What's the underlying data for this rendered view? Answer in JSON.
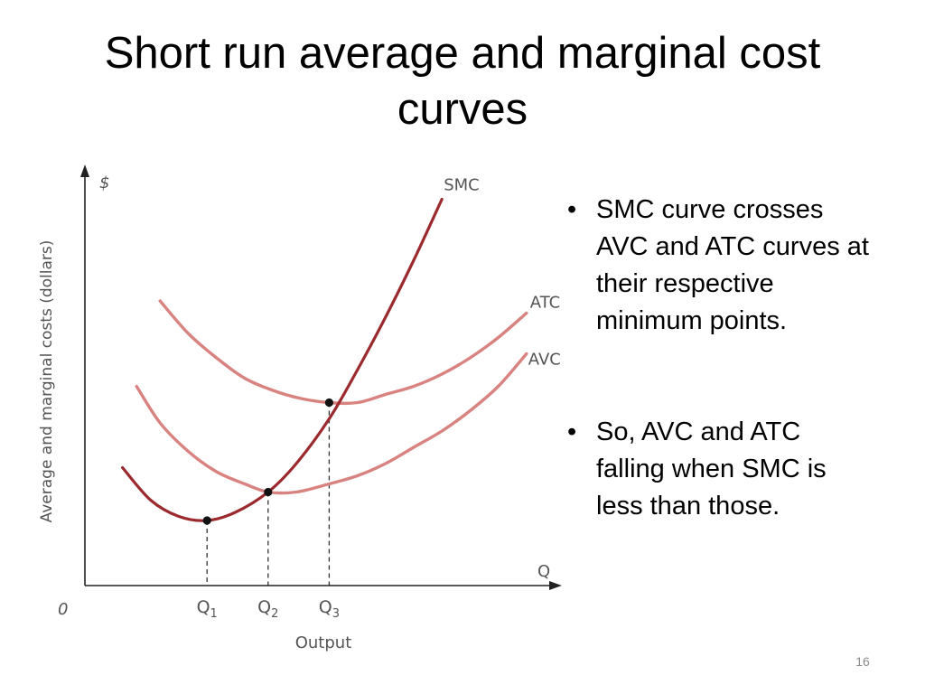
{
  "slide": {
    "title": "Short run average and marginal cost curves",
    "page_number": "16",
    "bullets": [
      "SMC curve crosses AVC and ATC curves at their respective minimum points.",
      "So, AVC and ATC falling when SMC is less than those."
    ]
  },
  "colors": {
    "smc": "#9b2a2e",
    "atc": "#d98380",
    "avc": "#d98380",
    "axis": "#222222",
    "label": "#555555",
    "point": "#111111"
  },
  "chart_data": {
    "type": "line",
    "title": "",
    "xlabel": "Output",
    "ylabel": "Average and marginal costs (dollars)",
    "x_axis_symbol": "Q",
    "y_axis_symbol": "$",
    "origin_label": "0",
    "xlim": [
      0,
      100
    ],
    "ylim": [
      0,
      100
    ],
    "x_ticks": [
      {
        "label": "Q",
        "sub": "1",
        "x": 26
      },
      {
        "label": "Q",
        "sub": "2",
        "x": 39
      },
      {
        "label": "Q",
        "sub": "3",
        "x": 52
      }
    ],
    "series": [
      {
        "name": "SMC",
        "x": [
          8,
          14,
          20,
          26,
          32,
          39,
          45,
          52,
          58,
          64,
          70,
          76
        ],
        "y": [
          29,
          21,
          17,
          16,
          18,
          23,
          30,
          41,
          53,
          66,
          80,
          95
        ]
      },
      {
        "name": "ATC",
        "x": [
          16,
          22,
          28,
          34,
          40,
          46,
          52,
          58,
          64,
          70,
          76,
          82,
          88,
          94
        ],
        "y": [
          70,
          62,
          56,
          51,
          48,
          46,
          45,
          45,
          47,
          49,
          52,
          56,
          61,
          67
        ]
      },
      {
        "name": "AVC",
        "x": [
          11,
          16,
          22,
          28,
          34,
          39,
          45,
          52,
          58,
          64,
          70,
          76,
          82,
          88,
          94
        ],
        "y": [
          49,
          40,
          33,
          28,
          25,
          23,
          23,
          25,
          27,
          30,
          34,
          38,
          43,
          49,
          57
        ]
      }
    ],
    "points": [
      {
        "name": "smc-minimum",
        "x": 26,
        "y": 16
      },
      {
        "name": "avc-minimum",
        "x": 39,
        "y": 23
      },
      {
        "name": "atc-minimum",
        "x": 52,
        "y": 45
      }
    ]
  }
}
